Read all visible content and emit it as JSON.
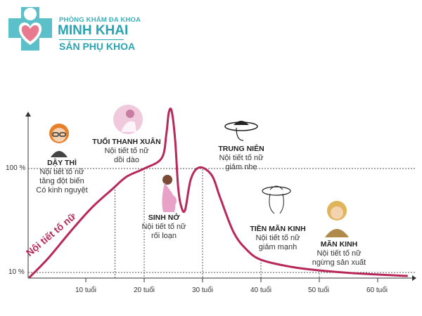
{
  "logo": {
    "line1": "PHÒNG KHÁM ĐA KHOA",
    "line2": "MINH KHAI",
    "line3": "SẢN PHỤ KHOA"
  },
  "chart_data": {
    "type": "line",
    "title": "",
    "series_label": "Nội tiết tố nữ",
    "xlabel": "",
    "ylabel": "",
    "x_ticks": [
      {
        "v": 10,
        "label": "10 tuổi"
      },
      {
        "v": 20,
        "label": "20 tuổi"
      },
      {
        "v": 30,
        "label": "30 tuổi"
      },
      {
        "v": 40,
        "label": "40 tuổi"
      },
      {
        "v": 50,
        "label": "50 tuổi"
      },
      {
        "v": 60,
        "label": "60 tuổi"
      }
    ],
    "y_ticks": [
      {
        "v": 100,
        "label": "100 %"
      },
      {
        "v": 10,
        "label": "10 %"
      }
    ],
    "xlim": [
      0,
      67
    ],
    "ylim": [
      0,
      160
    ],
    "color": "#b8285a",
    "points": [
      [
        0.4,
        6
      ],
      [
        3.5,
        22
      ],
      [
        7.3,
        45
      ],
      [
        11,
        66
      ],
      [
        14.5,
        82
      ],
      [
        17,
        93
      ],
      [
        20,
        100
      ],
      [
        23,
        109
      ],
      [
        23.8,
        130
      ],
      [
        24.2,
        148
      ],
      [
        24.7,
        150
      ],
      [
        25.3,
        125
      ],
      [
        25.8,
        85
      ],
      [
        26.3,
        68
      ],
      [
        27,
        64
      ],
      [
        28,
        91
      ],
      [
        29.5,
        101
      ],
      [
        31.6,
        94
      ],
      [
        33,
        75
      ],
      [
        35.3,
        45
      ],
      [
        37.5,
        30
      ],
      [
        40,
        21
      ],
      [
        45,
        15
      ],
      [
        49.6,
        12
      ],
      [
        57,
        9
      ],
      [
        65,
        7
      ]
    ],
    "guides_x": [
      15,
      20,
      30,
      40,
      50
    ],
    "annotations": [
      {
        "title": "DẬY THÌ",
        "lines": [
          "Nội tiết tố nữ",
          "tăng đột biến",
          "Có kinh nguyệt"
        ]
      },
      {
        "title": "TUỔI THANH XUÂN",
        "lines": [
          "Nội tiết tố nữ",
          "dồi dào"
        ]
      },
      {
        "title": "SINH NỞ",
        "lines": [
          "Nội tiết tố nữ",
          "rối loạn"
        ]
      },
      {
        "title": "TRUNG NIÊN",
        "lines": [
          "Nội tiết tố nữ",
          "giảm nhẹ"
        ]
      },
      {
        "title": "TIỀN MÃN KINH",
        "lines": [
          "Nội tiết tố nữ",
          "giảm mạnh"
        ]
      },
      {
        "title": "MÃN KINH",
        "lines": [
          "Nội tiết tố nữ",
          "ngừng sản xuất"
        ]
      }
    ]
  }
}
